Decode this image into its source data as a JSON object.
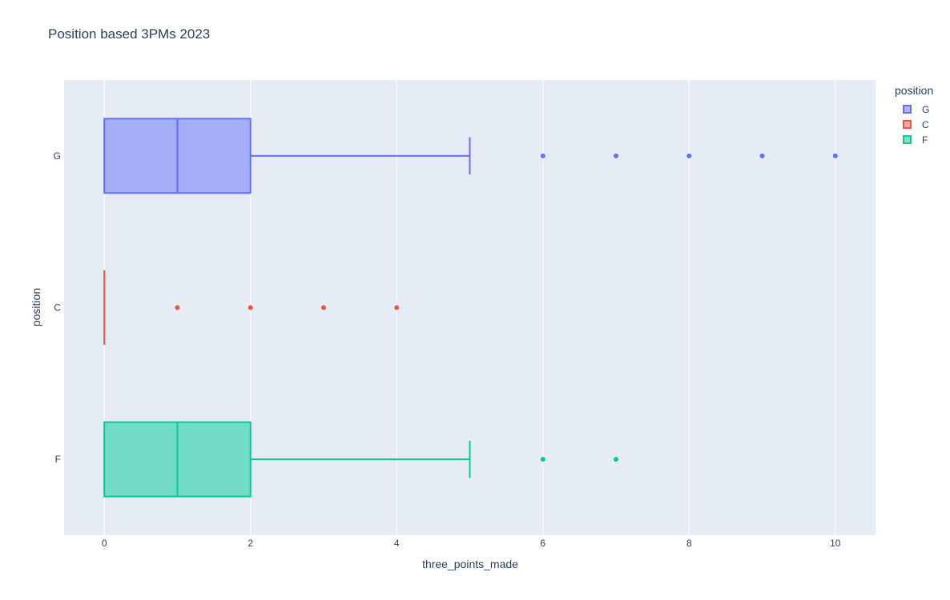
{
  "chart_data": {
    "type": "box",
    "orientation": "horizontal",
    "title": "Position based 3PMs 2023",
    "xlabel": "three_points_made",
    "ylabel": "position",
    "xlim": [
      -0.55,
      10.55
    ],
    "x_ticks": [
      0,
      2,
      4,
      6,
      8,
      10
    ],
    "grid": true,
    "legend": {
      "title": "position",
      "placement": "top-right"
    },
    "series": [
      {
        "name": "G",
        "color": "#636efa",
        "fill": "rgba(99,110,250,0.5)",
        "min": 0,
        "q1": 0,
        "median": 1,
        "q3": 2,
        "max": 5,
        "outliers": [
          6,
          7,
          8,
          9,
          10
        ]
      },
      {
        "name": "C",
        "color": "#ef553b",
        "fill": "rgba(239,85,59,0.5)",
        "min": 0,
        "q1": 0,
        "median": 0,
        "q3": 0,
        "max": 0,
        "outliers": [
          1,
          2,
          3,
          4
        ]
      },
      {
        "name": "F",
        "color": "#00cc96",
        "fill": "rgba(0,204,150,0.5)",
        "min": 0,
        "q1": 0,
        "median": 1,
        "q3": 2,
        "max": 5,
        "outliers": [
          6,
          7
        ]
      }
    ]
  }
}
